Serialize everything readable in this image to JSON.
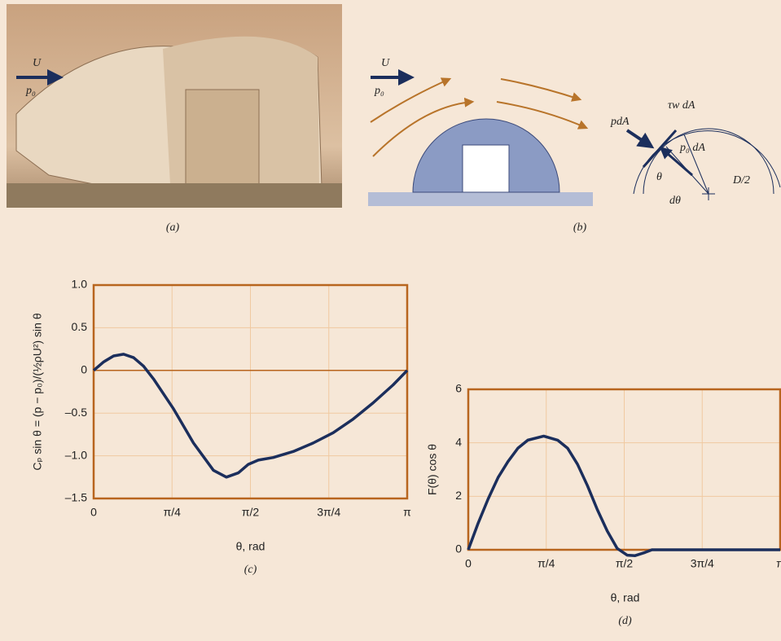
{
  "chart_data": [
    {
      "type": "line",
      "xlabel": "θ, rad",
      "ylabel": "Cₚ sin θ = (p − p₀)/(½ρU²) sin θ",
      "caption": "(c)",
      "x": [
        0,
        0.1,
        0.2,
        0.3,
        0.4,
        0.5,
        0.6,
        0.8,
        1.0,
        1.2,
        1.33,
        1.45,
        1.55,
        1.65,
        1.8,
        2.0,
        2.2,
        2.4,
        2.6,
        2.8,
        3.0,
        3.14159
      ],
      "values": [
        0,
        0.1,
        0.17,
        0.19,
        0.15,
        0.05,
        -0.1,
        -0.45,
        -0.85,
        -1.17,
        -1.25,
        -1.2,
        -1.1,
        -1.05,
        -1.02,
        -0.95,
        -0.85,
        -0.73,
        -0.57,
        -0.38,
        -0.17,
        0
      ],
      "color": "#1b2e5c",
      "frame_color": "#b8651e",
      "grid_color": "#f0c9a0",
      "grid": true,
      "zero_line": true,
      "xlim": [
        0,
        3.14159
      ],
      "ylim": [
        -1.5,
        1.0
      ],
      "xticks": [
        0,
        {
          "value": 0.785398,
          "label": "π/4"
        },
        {
          "value": 1.570796,
          "label": "π/2"
        },
        {
          "value": 2.356194,
          "label": "3π/4"
        },
        {
          "value": 3.14159,
          "label": "π"
        }
      ],
      "yticks": [
        {
          "value": -1.5,
          "label": "–1.5"
        },
        {
          "value": -1.0,
          "label": "–1.0"
        },
        {
          "value": -0.5,
          "label": "–0.5"
        },
        0,
        {
          "value": 0.5,
          "label": "0.5"
        },
        {
          "value": 1.0,
          "label": "1.0"
        }
      ]
    },
    {
      "type": "line",
      "xlabel": "θ, rad",
      "ylabel": "F(θ) cos θ",
      "caption": "(d)",
      "x": [
        0,
        0.1,
        0.2,
        0.3,
        0.4,
        0.5,
        0.6,
        0.76,
        0.9,
        1.0,
        1.1,
        1.2,
        1.3,
        1.4,
        1.5,
        1.6,
        1.68,
        1.78,
        1.85,
        2.0,
        2.5,
        3.14159
      ],
      "values": [
        0,
        1.0,
        1.9,
        2.7,
        3.3,
        3.8,
        4.1,
        4.25,
        4.1,
        3.8,
        3.2,
        2.4,
        1.5,
        0.7,
        0.05,
        -0.2,
        -0.22,
        -0.1,
        0,
        0,
        0,
        0
      ],
      "color": "#1b2e5c",
      "frame_color": "#b8651e",
      "grid_color": "#f0c9a0",
      "grid": true,
      "zero_line": false,
      "xlim": [
        0,
        3.14159
      ],
      "ylim": [
        0,
        6
      ],
      "xticks": [
        0,
        {
          "value": 0.785398,
          "label": "π/4"
        },
        {
          "value": 1.570796,
          "label": "π/2"
        },
        {
          "value": 2.356194,
          "label": "3π/4"
        },
        {
          "value": 3.14159,
          "label": "π"
        }
      ],
      "yticks": [
        0,
        2,
        4,
        6
      ]
    }
  ],
  "figure": {
    "a": {
      "caption": "(a)",
      "velocity": "U",
      "pressure": "p₀"
    },
    "b": {
      "caption": "(b)",
      "velocity": "U",
      "pressure": "p₀"
    },
    "detail": {
      "pressure_force": "pdA",
      "shear_force": "τw dA",
      "ambient_force": "p₀ dA",
      "angle": "θ",
      "dangle": "dθ",
      "radius": "D/2"
    }
  }
}
